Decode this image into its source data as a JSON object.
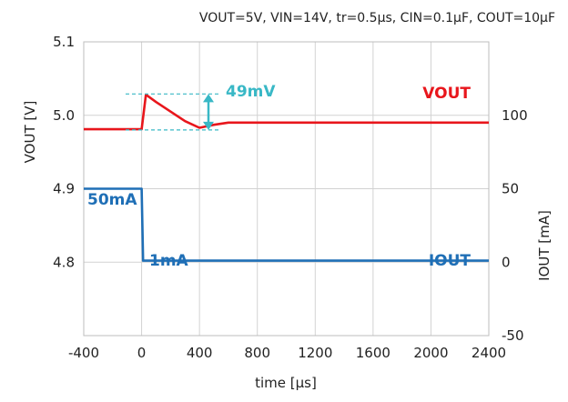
{
  "chart_data": {
    "type": "line",
    "conditions": "VOUT=5V, VIN=14V, tr=0.5μs, CIN=0.1μF, COUT=10μF",
    "xlabel": "time [μs]",
    "ylabel_left": "VOUT [V]",
    "ylabel_right": "IOUT [mA]",
    "xlim": [
      -400,
      2400
    ],
    "xticks": [
      -400,
      0,
      400,
      800,
      1200,
      1600,
      2000,
      2400
    ],
    "ylim_left": [
      4.7,
      5.1
    ],
    "yticks_left": [
      4.8,
      4.9,
      5.0,
      5.1
    ],
    "ylim_right": [
      -50,
      150
    ],
    "yticks_right": [
      -50,
      0,
      50,
      100
    ],
    "grid": true,
    "series": [
      {
        "name": "VOUT",
        "axis": "left",
        "color": "#e8161c",
        "x": [
          -400,
          -1,
          0,
          30,
          100,
          200,
          300,
          400,
          500,
          600,
          800,
          1200,
          1600,
          2000,
          2400
        ],
        "values": [
          4.981,
          4.981,
          4.981,
          5.028,
          5.018,
          5.005,
          4.992,
          4.983,
          4.987,
          4.99,
          4.99,
          4.99,
          4.99,
          4.99,
          4.99
        ]
      },
      {
        "name": "IOUT",
        "axis": "right",
        "color": "#1f6fb6",
        "x": [
          -400,
          -10,
          0,
          10,
          400,
          800,
          1200,
          1600,
          2000,
          2400
        ],
        "values": [
          50,
          50,
          50,
          1,
          1,
          1,
          1,
          1,
          1,
          1
        ]
      }
    ],
    "annotations": {
      "delta": "49mV",
      "vout_label": "VOUT",
      "iout_label": "IOUT",
      "load_high": "50mA",
      "load_low": "1mA"
    },
    "colors": {
      "vout": "#e8161c",
      "iout": "#1f6fb6",
      "delta": "#39b8c6",
      "grid": "#bdbdbd"
    }
  }
}
